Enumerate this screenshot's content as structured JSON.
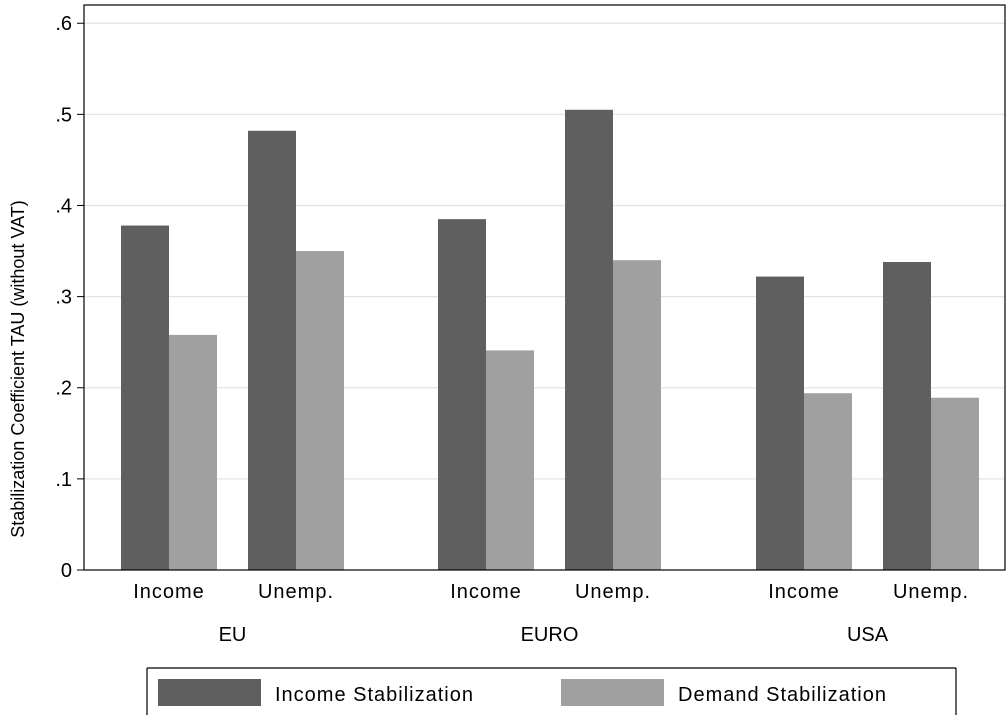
{
  "chart_data": {
    "type": "bar",
    "ylabel": "Stabilization Coefficient TAU (without VAT)",
    "ylim": [
      0,
      0.62
    ],
    "yticks": [
      {
        "value": 0,
        "label": "0"
      },
      {
        "value": 0.1,
        "label": ".1"
      },
      {
        "value": 0.2,
        "label": ".2"
      },
      {
        "value": 0.3,
        "label": ".3"
      },
      {
        "value": 0.4,
        "label": ".4"
      },
      {
        "value": 0.5,
        "label": ".5"
      },
      {
        "value": 0.6,
        "label": ".6"
      }
    ],
    "grid": true,
    "legend_position": "bottom",
    "groups": [
      {
        "label": "EU",
        "subgroups": [
          {
            "label": "Income",
            "values": [
              0.378,
              0.258
            ]
          },
          {
            "label": "Unemp.",
            "values": [
              0.482,
              0.35
            ]
          }
        ]
      },
      {
        "label": "EURO",
        "subgroups": [
          {
            "label": "Income",
            "values": [
              0.385,
              0.241
            ]
          },
          {
            "label": "Unemp.",
            "values": [
              0.505,
              0.34
            ]
          }
        ]
      },
      {
        "label": "USA",
        "subgroups": [
          {
            "label": "Income",
            "values": [
              0.322,
              0.194
            ]
          },
          {
            "label": "Unemp.",
            "values": [
              0.338,
              0.189
            ]
          }
        ]
      }
    ],
    "series": [
      {
        "name": "Income Stabilization",
        "color": "#5f5f5f"
      },
      {
        "name": "Demand Stabilization",
        "color": "#a0a0a0"
      }
    ]
  }
}
